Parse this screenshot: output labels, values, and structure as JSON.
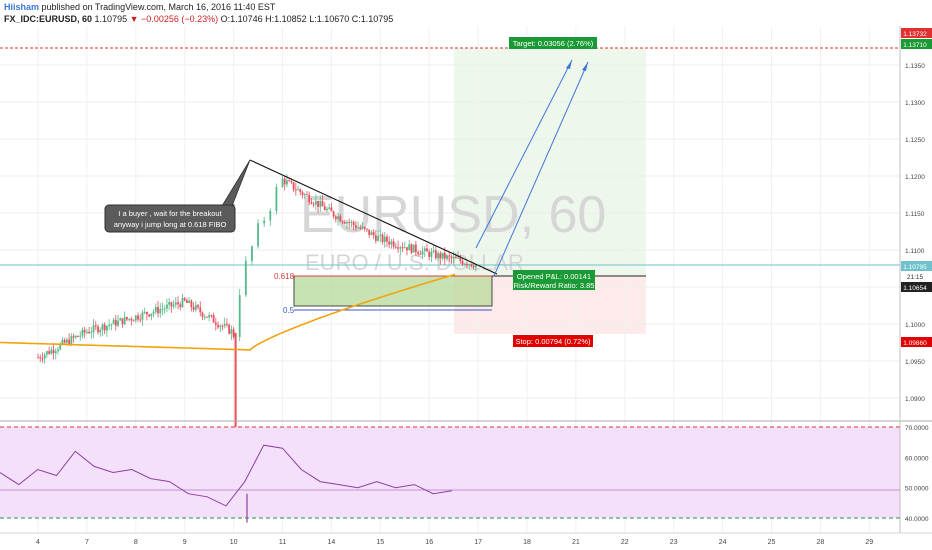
{
  "header": {
    "author": "Hiisham",
    "published": "published on TradingView.com, March 16, 2016 11:40 EST",
    "symbol": "FX_IDC:EURUSD, 60",
    "last": "1.10795",
    "change_arrow": "▼",
    "change": "−0.00256 (−0.23%)",
    "ohlc": "O:1.10746 H:1.10852 L:1.10670 C:1.10795"
  },
  "watermark": {
    "symbol": "EURUSD, 60",
    "name": "EURO / U.S. DOLLAR"
  },
  "annotations": {
    "callout_line1": "I a buyer , wait for the breakout",
    "callout_line2": "anyway i jump long at 0.618 FIBO",
    "fib_618": "0.618",
    "fib_05": "0.5",
    "target": "Target: 0.03056 (2.76%)",
    "opened_pl": "Opened P&L: 0.00141",
    "risk_reward": "Risk/Reward Ratio: 3.85",
    "stop": "Stop: 0.00794 (0.72%)"
  },
  "price_badges": {
    "badge_1": "1.13732",
    "badge_2": "1.13710",
    "badge_last": "1.10795",
    "badge_time": "21:15",
    "badge_entry": "1.10654",
    "badge_stop": "1.09860"
  },
  "colors": {
    "up_candle": "#53b987",
    "down_candle": "#eb4d5c",
    "ma": "#f0a30a",
    "target_badge": "#1a9a35",
    "stop_badge": "#e00000",
    "rsi_line": "#8e3fa0",
    "rsi_band": "#f4e0fa",
    "trend_line": "#000000",
    "projection": "#3c78d8"
  },
  "chart_data": [
    {
      "type": "candlestick",
      "symbol": "EURUSD",
      "timeframe": "60",
      "ylim": [
        1.0855,
        1.1395
      ],
      "y_ticks": [
        1.09,
        1.095,
        1.1,
        1.105,
        1.11,
        1.115,
        1.12,
        1.125,
        1.13,
        1.135
      ],
      "x_ticks": [
        "4",
        "7",
        "8",
        "9",
        "10",
        "11",
        "14",
        "15",
        "16",
        "17",
        "18",
        "21",
        "22",
        "23",
        "24",
        "25",
        "28",
        "29"
      ],
      "x_tick_day_index": [
        0,
        1,
        2,
        3,
        4,
        5,
        6,
        7,
        8,
        9,
        10,
        11,
        12,
        13,
        14,
        15,
        16,
        17
      ],
      "grid": true,
      "ohlc_daily_approx": [
        {
          "day": "4",
          "open": 1.0955,
          "high": 1.1015,
          "low": 1.0882,
          "close": 1.099
        },
        {
          "day": "7",
          "open": 1.099,
          "high": 1.103,
          "low": 1.0955,
          "close": 1.101
        },
        {
          "day": "8",
          "open": 1.101,
          "high": 1.1062,
          "low": 1.099,
          "close": 1.103
        },
        {
          "day": "9",
          "open": 1.103,
          "high": 1.1045,
          "low": 1.0975,
          "close": 1.0988
        },
        {
          "day": "10",
          "open": 1.0988,
          "high": 1.1215,
          "low": 1.0822,
          "close": 1.1195
        },
        {
          "day": "11",
          "open": 1.1195,
          "high": 1.1218,
          "low": 1.108,
          "close": 1.115
        },
        {
          "day": "14",
          "open": 1.115,
          "high": 1.118,
          "low": 1.109,
          "close": 1.1115
        },
        {
          "day": "15",
          "open": 1.1115,
          "high": 1.113,
          "low": 1.107,
          "close": 1.1095
        },
        {
          "day": "16",
          "open": 1.1095,
          "high": 1.111,
          "low": 1.1066,
          "close": 1.108
        }
      ],
      "moving_average": {
        "start": 1.0975,
        "low": 1.0965,
        "end": 1.1067
      },
      "last_price": 1.10795,
      "entry_price": 1.10654,
      "target_price": 1.1371,
      "stop_price": 1.0986,
      "fib_levels": {
        "0.618": 1.1078,
        "0.5": 1.1022
      }
    },
    {
      "type": "line",
      "name": "RSI",
      "ylim": [
        38,
        72
      ],
      "y_ticks": [
        40,
        50,
        60,
        70
      ],
      "overbought": 70,
      "oversold": 40,
      "mid": 50,
      "values": [
        55,
        51,
        56,
        54,
        62,
        57,
        55,
        56,
        53,
        52,
        48,
        47,
        44,
        52,
        64,
        63,
        56,
        52,
        51,
        50,
        52,
        50,
        51,
        48,
        49
      ]
    }
  ]
}
